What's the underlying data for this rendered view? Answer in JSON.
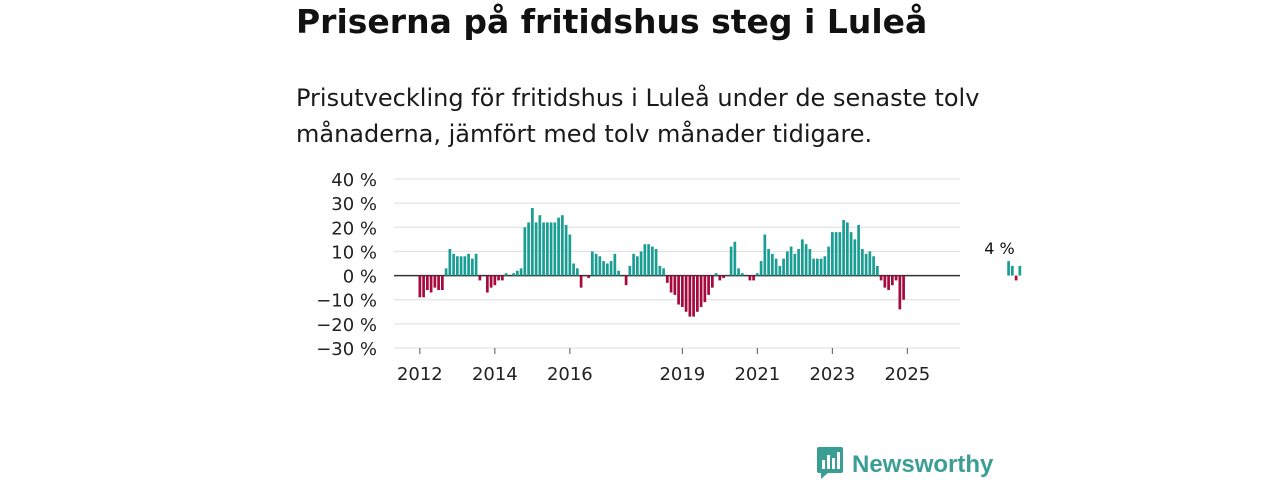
{
  "title": "Priserna på fritidshus steg i Luleå",
  "subtitle": "Prisutveckling för fritidshus i Luleå under de senaste tolv månaderna, jämfört med tolv månader tidigare.",
  "brand": {
    "name": "Newsworthy",
    "icon": "bar-chart-logo-icon",
    "color": "#3b9e95"
  },
  "colors": {
    "positive": "#1a9e94",
    "negative": "#a6093d",
    "grid": "#dddddd",
    "zero": "#333333"
  },
  "chart_data": {
    "type": "bar",
    "title": "Priserna på fritidshus steg i Luleå",
    "xlabel": "",
    "ylabel": "",
    "ylim": [
      -30,
      40
    ],
    "yticks": [
      {
        "value": 40,
        "label": "40 %"
      },
      {
        "value": 30,
        "label": "30 %"
      },
      {
        "value": 20,
        "label": "20 %"
      },
      {
        "value": 10,
        "label": "10 %"
      },
      {
        "value": 0,
        "label": "0 %"
      },
      {
        "value": -10,
        "label": "−10 %"
      },
      {
        "value": -20,
        "label": "−20 %"
      },
      {
        "value": -30,
        "label": "−30 %"
      }
    ],
    "xticks": [
      {
        "label": "2012",
        "index": 0
      },
      {
        "label": "2014",
        "index": 20
      },
      {
        "label": "2016",
        "index": 40
      },
      {
        "label": "2019",
        "index": 70
      },
      {
        "label": "2021",
        "index": 90
      },
      {
        "label": "2023",
        "index": 110
      },
      {
        "label": "2025",
        "index": 130
      }
    ],
    "x_total": 146,
    "values": [
      -9,
      -9,
      -6,
      -7,
      -5,
      -6,
      -6,
      3,
      11,
      9,
      8,
      8,
      8,
      9,
      7,
      9,
      -2,
      0,
      -7,
      -5,
      -4,
      -2,
      -2,
      1,
      0,
      1,
      2,
      3,
      20,
      22,
      28,
      22,
      25,
      22,
      22,
      22,
      22,
      24,
      25,
      21,
      17,
      5,
      3,
      -5,
      0,
      -1,
      10,
      9,
      8,
      6,
      5,
      6,
      9,
      2,
      0,
      -4,
      4,
      9,
      8,
      10,
      13,
      13,
      12,
      11,
      4,
      3,
      -3,
      -7,
      -8,
      -12,
      -13,
      -15,
      -17,
      -17,
      -15,
      -13,
      -11,
      -8,
      -5,
      1,
      -2,
      -1,
      0,
      12,
      14,
      3,
      1,
      0,
      -2,
      -2,
      1,
      6,
      17,
      11,
      9,
      7,
      4,
      7,
      10,
      12,
      9,
      11,
      15,
      13,
      11,
      7,
      7,
      7,
      8,
      12,
      18,
      18,
      18,
      23,
      22,
      18,
      15,
      21,
      11,
      9,
      10,
      8,
      4,
      -2,
      -5,
      -6,
      -4,
      -2,
      -14,
      -10,
      null,
      null,
      null,
      null,
      null,
      null,
      null,
      null,
      null,
      null,
      null,
      null,
      null,
      null,
      null,
      null,
      null,
      null,
      null,
      null,
      null,
      null,
      null,
      null,
      null,
      null,
      null,
      6,
      4,
      -2,
      4
    ],
    "annotations": [
      {
        "text": "4 %",
        "index": 156
      }
    ]
  }
}
